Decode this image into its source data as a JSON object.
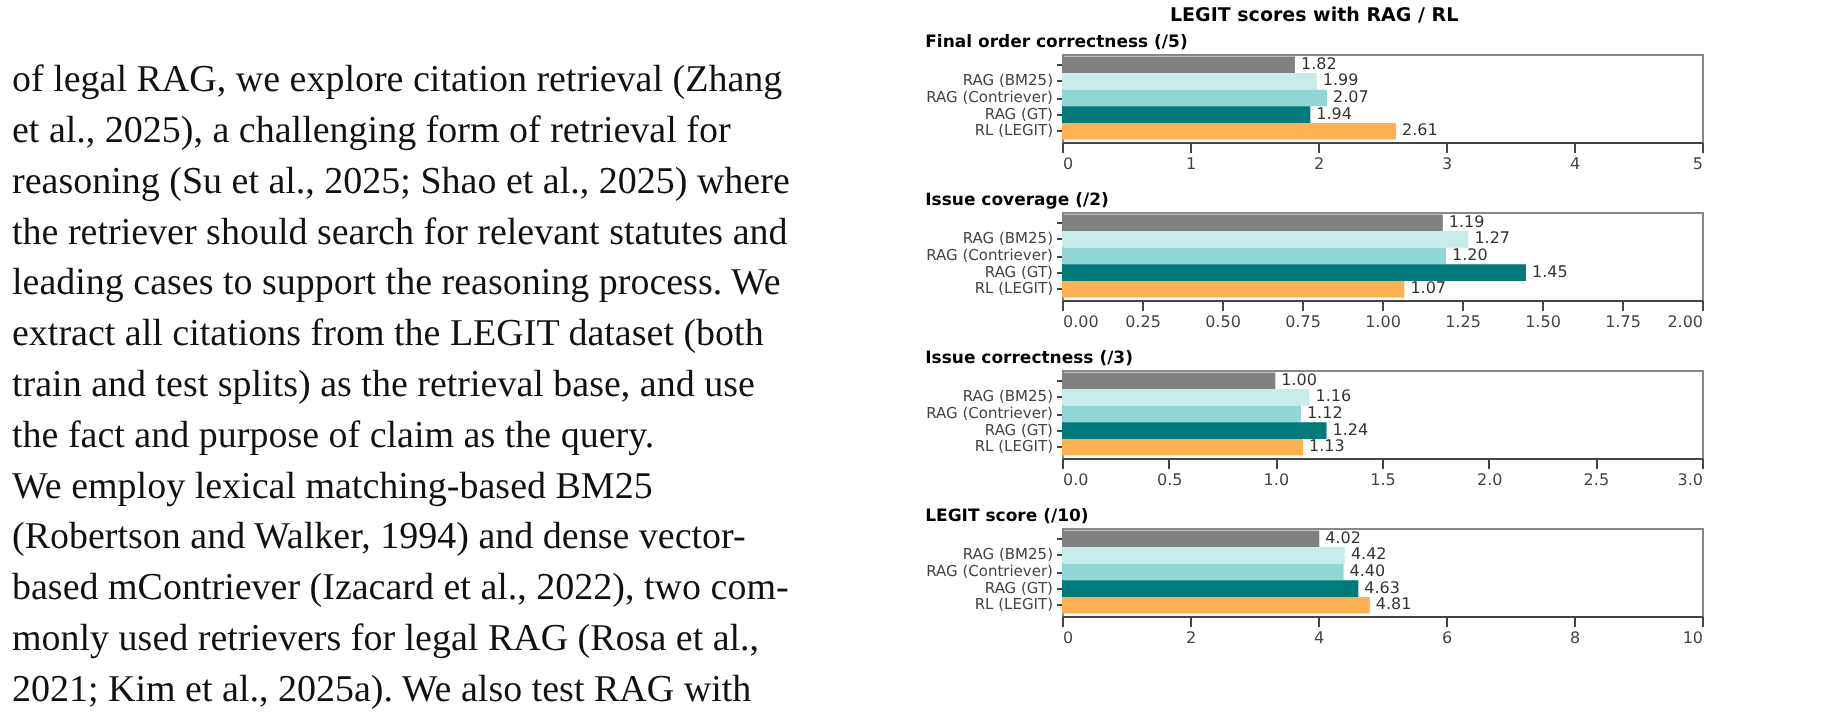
{
  "chart_data": [
    {
      "type": "other",
      "annotations": [
        "of legal RAG, we explore citation retrieval (Zhang",
        "et al., 2025), a challenging form of retrieval for",
        "reasoning (Su et al., 2025; Shao et al., 2025) where",
        "the retriever should search for relevant statutes and",
        "leading cases to support the reasoning process. We",
        "extract all citations from the LEGIT dataset (both",
        "train and test splits) as the retrieval base, and use",
        "the fact and purpose of claim as the query.",
        "    We employ lexical matching-based BM25",
        "(Robertson and Walker, 1994) and dense vector-",
        "based mContriever (Izacard et al., 2022), two com-",
        "monly used retrievers for legal RAG (Rosa et al.,",
        "2021; Kim et al., 2025a). We also test RAG with"
      ]
    },
    {
      "type": "bar",
      "orientation": "horizontal",
      "title": "LEGIT scores with RAG / RL",
      "subtitle": "Final order correctness (/5)",
      "categories": [
        null,
        "RAG (BM25)",
        "RAG (Contriever)",
        "RAG (GT)",
        "RL (LEGIT)"
      ],
      "values": [
        1.82,
        1.99,
        2.07,
        1.94,
        2.61
      ],
      "colors": [
        "#808080",
        "#c8ece9",
        "#8fd6d4",
        "#007a7a",
        "#fdb151"
      ],
      "xlim": [
        0,
        5
      ],
      "xticks": [
        0,
        1,
        2,
        3,
        4,
        5
      ],
      "value_labels": [
        "1.82",
        "1.99",
        "2.07",
        "1.94",
        "2.61"
      ],
      "grid": false
    },
    {
      "type": "bar",
      "orientation": "horizontal",
      "title": "Issue coverage (/2)",
      "categories": [
        null,
        "RAG (BM25)",
        "RAG (Contriever)",
        "RAG (GT)",
        "RL (LEGIT)"
      ],
      "values": [
        1.19,
        1.27,
        1.2,
        1.45,
        1.07
      ],
      "colors": [
        "#808080",
        "#c8ece9",
        "#8fd6d4",
        "#007a7a",
        "#fdb151"
      ],
      "xlim": [
        0,
        2
      ],
      "xticks": [
        {
          "value": 0,
          "label": "0.00"
        },
        {
          "value": 0.25,
          "label": "0.25"
        },
        {
          "value": 0.5,
          "label": "0.50"
        },
        {
          "value": 0.75,
          "label": "0.75"
        },
        {
          "value": 1,
          "label": "1.00"
        },
        {
          "value": 1.25,
          "label": "1.25"
        },
        {
          "value": 1.5,
          "label": "1.50"
        },
        {
          "value": 1.75,
          "label": "1.75"
        },
        {
          "value": 2,
          "label": "2.00"
        }
      ],
      "value_labels": [
        "1.19",
        "1.27",
        "1.20",
        "1.45",
        "1.07"
      ],
      "grid": false
    },
    {
      "type": "bar",
      "orientation": "horizontal",
      "title": "Issue correctness (/3)",
      "categories": [
        null,
        "RAG (BM25)",
        "RAG (Contriever)",
        "RAG (GT)",
        "RL (LEGIT)"
      ],
      "values": [
        1.0,
        1.16,
        1.12,
        1.24,
        1.13
      ],
      "colors": [
        "#808080",
        "#c8ece9",
        "#8fd6d4",
        "#007a7a",
        "#fdb151"
      ],
      "xlim": [
        0,
        3
      ],
      "xticks": [
        {
          "value": 0,
          "label": "0.0"
        },
        {
          "value": 0.5,
          "label": "0.5"
        },
        {
          "value": 1,
          "label": "1.0"
        },
        {
          "value": 1.5,
          "label": "1.5"
        },
        {
          "value": 2,
          "label": "2.0"
        },
        {
          "value": 2.5,
          "label": "2.5"
        },
        {
          "value": 3,
          "label": "3.0"
        }
      ],
      "value_labels": [
        "1.00",
        "1.16",
        "1.12",
        "1.24",
        "1.13"
      ],
      "grid": false
    },
    {
      "type": "bar",
      "orientation": "horizontal",
      "title": "LEGIT score (/10)",
      "categories": [
        null,
        "RAG (BM25)",
        "RAG (Contriever)",
        "RAG (GT)",
        "RL (LEGIT)"
      ],
      "values": [
        4.02,
        4.42,
        4.4,
        4.63,
        4.81
      ],
      "colors": [
        "#808080",
        "#c8ece9",
        "#8fd6d4",
        "#007a7a",
        "#fdb151"
      ],
      "xlim": [
        0,
        10
      ],
      "xticks": [
        0,
        2,
        4,
        6,
        8,
        10
      ],
      "value_labels": [
        "4.02",
        "4.42",
        "4.40",
        "4.63",
        "4.81"
      ],
      "grid": false
    }
  ]
}
